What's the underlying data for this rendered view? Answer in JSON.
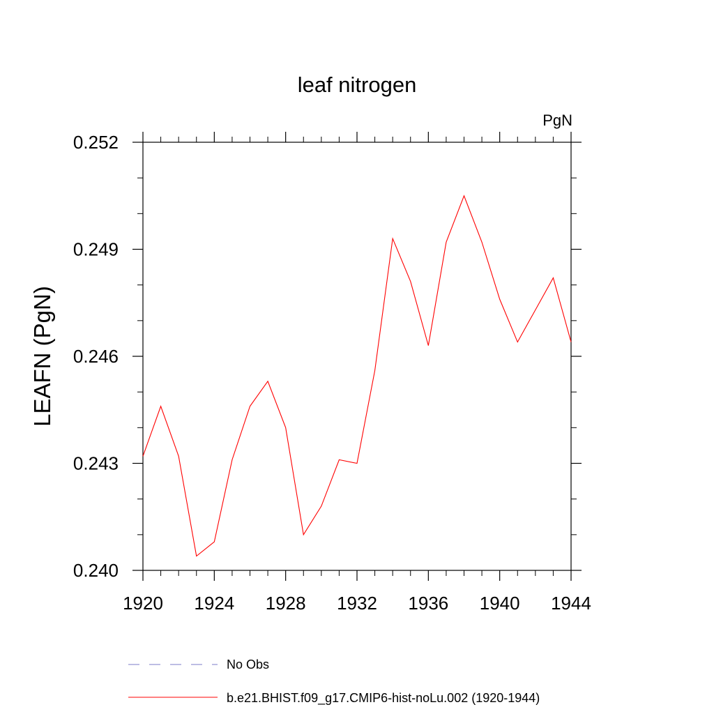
{
  "chart_data": {
    "type": "line",
    "title": "leaf nitrogen",
    "units_label": "PgN",
    "ylabel": "LEAFN  (PgN)",
    "xlabel": "",
    "xlim": [
      1920,
      1944
    ],
    "ylim": [
      0.24,
      0.252
    ],
    "x_ticks": [
      1920,
      1924,
      1928,
      1932,
      1936,
      1940,
      1944
    ],
    "x_tick_labels": [
      "1920",
      "1924",
      "1928",
      "1932",
      "1936",
      "1940",
      "1944"
    ],
    "x_minor_step": 1,
    "y_ticks": [
      0.24,
      0.243,
      0.246,
      0.249,
      0.252
    ],
    "y_tick_labels": [
      "0.240",
      "0.243",
      "0.246",
      "0.249",
      "0.252"
    ],
    "y_minor_step": 0.001,
    "grid": false,
    "legend_position": "bottom",
    "series": [
      {
        "name": "b.e21.BHIST.f09_g17.CMIP6-hist-noLu.002 (1920-1944)",
        "color": "#ff0000",
        "dash": "solid",
        "x": [
          1920,
          1921,
          1922,
          1923,
          1924,
          1925,
          1926,
          1927,
          1928,
          1929,
          1930,
          1931,
          1932,
          1933,
          1934,
          1935,
          1936,
          1937,
          1938,
          1939,
          1940,
          1941,
          1942,
          1943,
          1944
        ],
        "y": [
          0.2432,
          0.2446,
          0.2432,
          0.2404,
          0.2408,
          0.2431,
          0.2446,
          0.2453,
          0.244,
          0.241,
          0.2418,
          0.2431,
          0.243,
          0.2456,
          0.2493,
          0.2481,
          0.2463,
          0.2492,
          0.2505,
          0.2492,
          0.2476,
          0.2464,
          0.2473,
          0.2482,
          0.2464
        ]
      },
      {
        "name": "No Obs",
        "color": "#7b7bc8",
        "dash": "dashed",
        "x": [],
        "y": []
      }
    ]
  }
}
